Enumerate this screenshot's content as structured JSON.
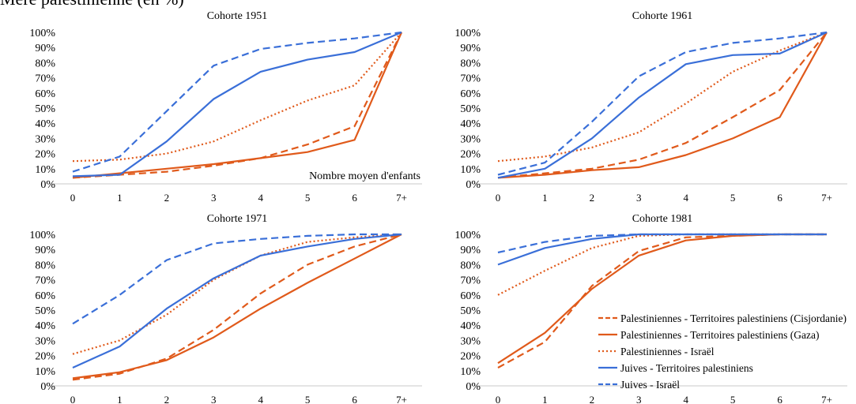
{
  "top_title": "Mère palestinienne (en %)",
  "colors": {
    "orange": "#e05a1b",
    "blue": "#3a6fd8",
    "grid": "#e6e6e6",
    "axis": "#c8c8c8"
  },
  "x_label_note": "Nombre moyen d'enfants",
  "chart_data": [
    {
      "type": "line",
      "title": "Cohorte 1951",
      "categories": [
        "0",
        "1",
        "2",
        "3",
        "4",
        "5",
        "6",
        "7+"
      ],
      "yticks": [
        "0%",
        "10%",
        "20%",
        "30%",
        "40%",
        "50%",
        "60%",
        "70%",
        "80%",
        "90%",
        "100%"
      ],
      "ylim": [
        0,
        100
      ],
      "grid": false,
      "annotation": "Nombre moyen d'enfants",
      "series": [
        {
          "name": "Palestiniennes - Territoires palestiniens (Cisjordanie)",
          "color": "#e05a1b",
          "style": "dashed",
          "values": [
            4,
            6,
            8,
            12,
            17,
            26,
            38,
            100
          ]
        },
        {
          "name": "Palestiniennes - Territoires palestiniens (Gaza)",
          "color": "#e05a1b",
          "style": "solid",
          "values": [
            4,
            7,
            10,
            13,
            17,
            21,
            29,
            100
          ]
        },
        {
          "name": "Palestiniennes - Israël",
          "color": "#e05a1b",
          "style": "dotted",
          "values": [
            15,
            16,
            20,
            28,
            42,
            55,
            65,
            100
          ]
        },
        {
          "name": "Juives - Territoires palestiniens",
          "color": "#3a6fd8",
          "style": "solid",
          "values": [
            5,
            6,
            28,
            56,
            74,
            82,
            87,
            100
          ]
        },
        {
          "name": "Juives - Israël",
          "color": "#3a6fd8",
          "style": "dashed",
          "values": [
            8,
            18,
            48,
            78,
            89,
            93,
            96,
            100
          ]
        }
      ]
    },
    {
      "type": "line",
      "title": "Cohorte 1961",
      "categories": [
        "0",
        "1",
        "2",
        "3",
        "4",
        "5",
        "6",
        "7+"
      ],
      "yticks": [
        "0%",
        "10%",
        "20%",
        "30%",
        "40%",
        "50%",
        "60%",
        "70%",
        "80%",
        "90%",
        "100%"
      ],
      "ylim": [
        0,
        100
      ],
      "grid": false,
      "series": [
        {
          "name": "Palestiniennes - Territoires palestiniens (Cisjordanie)",
          "color": "#e05a1b",
          "style": "dashed",
          "values": [
            4,
            7,
            10,
            16,
            27,
            44,
            62,
            100
          ]
        },
        {
          "name": "Palestiniennes - Territoires palestiniens (Gaza)",
          "color": "#e05a1b",
          "style": "solid",
          "values": [
            4,
            6,
            9,
            11,
            19,
            30,
            44,
            100
          ]
        },
        {
          "name": "Palestiniennes - Israël",
          "color": "#e05a1b",
          "style": "dotted",
          "values": [
            15,
            18,
            24,
            34,
            53,
            74,
            88,
            100
          ]
        },
        {
          "name": "Juives - Territoires palestiniens",
          "color": "#3a6fd8",
          "style": "solid",
          "values": [
            4,
            10,
            30,
            57,
            79,
            85,
            86,
            100
          ]
        },
        {
          "name": "Juives - Israël",
          "color": "#3a6fd8",
          "style": "dashed",
          "values": [
            6,
            14,
            41,
            71,
            87,
            93,
            96,
            100
          ]
        }
      ]
    },
    {
      "type": "line",
      "title": "Cohorte 1971",
      "categories": [
        "0",
        "1",
        "2",
        "3",
        "4",
        "5",
        "6",
        "7+"
      ],
      "yticks": [
        "0%",
        "10%",
        "20%",
        "30%",
        "40%",
        "50%",
        "60%",
        "70%",
        "80%",
        "90%",
        "100%"
      ],
      "ylim": [
        0,
        100
      ],
      "grid": false,
      "series": [
        {
          "name": "Palestiniennes - Territoires palestiniens (Cisjordanie)",
          "color": "#e05a1b",
          "style": "dashed",
          "values": [
            4,
            8,
            18,
            37,
            61,
            80,
            92,
            100
          ]
        },
        {
          "name": "Palestiniennes - Territoires palestiniens (Gaza)",
          "color": "#e05a1b",
          "style": "solid",
          "values": [
            5,
            9,
            17,
            32,
            51,
            68,
            84,
            100
          ]
        },
        {
          "name": "Palestiniennes - Israël",
          "color": "#e05a1b",
          "style": "dotted",
          "values": [
            21,
            30,
            47,
            70,
            86,
            95,
            98,
            100
          ]
        },
        {
          "name": "Juives - Territoires palestiniens",
          "color": "#3a6fd8",
          "style": "solid",
          "values": [
            12,
            26,
            51,
            71,
            86,
            92,
            97,
            100
          ]
        },
        {
          "name": "Juives - Israël",
          "color": "#3a6fd8",
          "style": "dashed",
          "values": [
            41,
            60,
            83,
            94,
            97,
            99,
            100,
            100
          ]
        }
      ]
    },
    {
      "type": "line",
      "title": "Cohorte 1981",
      "categories": [
        "0",
        "1",
        "2",
        "3",
        "4",
        "5",
        "6",
        "7+"
      ],
      "yticks": [
        "0%",
        "10%",
        "20%",
        "30%",
        "40%",
        "50%",
        "60%",
        "70%",
        "80%",
        "90%",
        "100%"
      ],
      "ylim": [
        0,
        100
      ],
      "grid": false,
      "legend": "inside-bottom-right",
      "series": [
        {
          "name": "Palestiniennes - Territoires palestiniens (Cisjordanie)",
          "color": "#e05a1b",
          "style": "dashed",
          "values": [
            12,
            29,
            66,
            89,
            98,
            99,
            100,
            100
          ]
        },
        {
          "name": "Palestiniennes - Territoires palestiniens (Gaza)",
          "color": "#e05a1b",
          "style": "solid",
          "values": [
            15,
            35,
            64,
            86,
            96,
            99,
            100,
            100
          ]
        },
        {
          "name": "Palestiniennes - Israël",
          "color": "#e05a1b",
          "style": "dotted",
          "values": [
            60,
            76,
            91,
            99,
            100,
            100,
            100,
            100
          ]
        },
        {
          "name": "Juives - Territoires palestiniens",
          "color": "#3a6fd8",
          "style": "solid",
          "values": [
            80,
            91,
            97,
            100,
            100,
            100,
            100,
            100
          ]
        },
        {
          "name": "Juives - Israël",
          "color": "#3a6fd8",
          "style": "dashed",
          "values": [
            88,
            95,
            99,
            100,
            100,
            100,
            100,
            100
          ]
        }
      ]
    }
  ]
}
